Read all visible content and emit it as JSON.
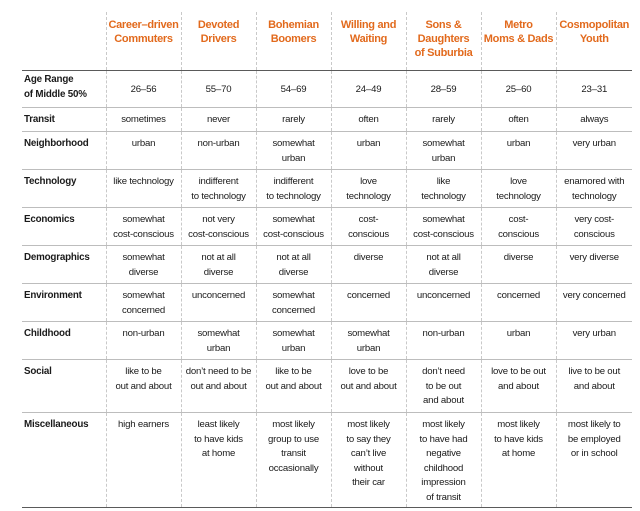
{
  "columns": [
    "Career–driven\nCommuters",
    "Devoted\nDrivers",
    "Bohemian\nBoomers",
    "Willing and\nWaiting",
    "Sons & Daughters\nof Suburbia",
    "Metro\nMoms & Dads",
    "Cosmopolitan\nYouth"
  ],
  "rows": [
    {
      "label": "Age Range\nof Middle 50%",
      "cells": [
        "26–56",
        "55–70",
        "54–69",
        "24–49",
        "28–59",
        "25–60",
        "23–31"
      ]
    },
    {
      "label": "Transit",
      "cells": [
        "sometimes",
        "never",
        "rarely",
        "often",
        "rarely",
        "often",
        "always"
      ]
    },
    {
      "label": "Neighborhood",
      "cells": [
        "urban",
        "non-urban",
        "somewhat\nurban",
        "urban",
        "somewhat\nurban",
        "urban",
        "very urban"
      ]
    },
    {
      "label": "Technology",
      "cells": [
        "like technology",
        "indifferent\nto technology",
        "indifferent\nto technology",
        "love\ntechnology",
        "like\ntechnology",
        "love\ntechnology",
        "enamored with\ntechnology"
      ]
    },
    {
      "label": "Economics",
      "cells": [
        "somewhat\ncost-conscious",
        "not very\ncost-conscious",
        "somewhat\ncost-conscious",
        "cost-\nconscious",
        "somewhat\ncost-conscious",
        "cost-\nconscious",
        "very cost-\nconscious"
      ]
    },
    {
      "label": "Demographics",
      "cells": [
        "somewhat\ndiverse",
        "not at all\ndiverse",
        "not at all\ndiverse",
        "diverse",
        "not at all\ndiverse",
        "diverse",
        "very diverse"
      ]
    },
    {
      "label": "Environment",
      "cells": [
        "somewhat\nconcerned",
        "unconcerned",
        "somewhat\nconcerned",
        "concerned",
        "unconcerned",
        "concerned",
        "very concerned"
      ]
    },
    {
      "label": "Childhood",
      "cells": [
        "non-urban",
        "somewhat\nurban",
        "somewhat\nurban",
        "somewhat\nurban",
        "non-urban",
        "urban",
        "very urban"
      ]
    },
    {
      "label": "Social",
      "cells": [
        "like to be\nout and about",
        "don’t need to be\nout and about",
        "like to be\nout and about",
        "love to be\nout and about",
        "don’t need\nto be out\nand about",
        "love to be out\nand about",
        "live to be out\nand about"
      ]
    },
    {
      "label": "Miscellaneous",
      "cells": [
        "high earners",
        "least likely\nto have kids\nat home",
        "most likely\ngroup to use\ntransit\noccasionally",
        "most likely\nto say they\ncan’t live\nwithout\ntheir car",
        "most likely\nto have had\nnegative\nchildhood\nimpression\nof transit",
        "most likely\nto have kids\nat home",
        "most likely to\nbe employed\nor in school"
      ]
    }
  ]
}
